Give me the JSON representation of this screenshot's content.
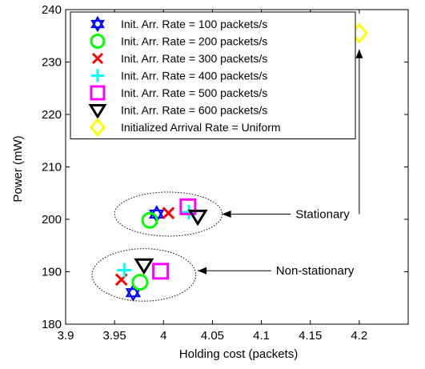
{
  "chart_data": {
    "type": "scatter",
    "title": "",
    "xlabel": "Holding cost (packets)",
    "ylabel": "Power (mW)",
    "xlim": [
      3.9,
      4.25
    ],
    "ylim": [
      180,
      240
    ],
    "xticks": [
      3.9,
      3.95,
      4,
      4.05,
      4.1,
      4.15,
      4.2
    ],
    "xtick_labels": [
      "3.9",
      "3.95",
      "4",
      "4.05",
      "4.1",
      "4.15",
      "4.2"
    ],
    "yticks": [
      180,
      190,
      200,
      210,
      220,
      230,
      240
    ],
    "ytick_labels": [
      "180",
      "190",
      "200",
      "210",
      "220",
      "230",
      "240"
    ],
    "legend_position": "top-left",
    "series": [
      {
        "name": "Init. Arr. Rate = 100 packets/s",
        "marker": "hexagram",
        "color": "#0000ff",
        "points": [
          {
            "x": 3.993,
            "y": 201.0
          },
          {
            "x": 3.969,
            "y": 186.0
          }
        ]
      },
      {
        "name": "Init. Arr. Rate = 200 packets/s",
        "marker": "circle",
        "color": "#00ff00",
        "points": [
          {
            "x": 3.986,
            "y": 199.8
          },
          {
            "x": 3.976,
            "y": 188.0
          }
        ]
      },
      {
        "name": "Init. Arr. Rate = 300 packets/s",
        "marker": "x",
        "color": "#ff0000",
        "points": [
          {
            "x": 4.005,
            "y": 201.2
          },
          {
            "x": 3.957,
            "y": 188.5
          }
        ]
      },
      {
        "name": "Init. Arr. Rate = 400 packets/s",
        "marker": "plus",
        "color": "#00ffff",
        "points": [
          {
            "x": 4.026,
            "y": 201.4
          },
          {
            "x": 3.96,
            "y": 190.3
          }
        ]
      },
      {
        "name": "Init. Arr. Rate = 500 packets/s",
        "marker": "square",
        "color": "#ff00ff",
        "points": [
          {
            "x": 4.025,
            "y": 202.4
          },
          {
            "x": 3.997,
            "y": 190.1
          }
        ]
      },
      {
        "name": "Init. Arr. Rate = 600 packets/s",
        "marker": "triangle-down",
        "color": "#000000",
        "points": [
          {
            "x": 4.035,
            "y": 200.6
          },
          {
            "x": 3.98,
            "y": 191.3
          }
        ]
      },
      {
        "name": "Initialized Arrival Rate = Uniform",
        "marker": "diamond",
        "color": "#ffff00",
        "points": [
          {
            "x": 4.2,
            "y": 235.5
          }
        ]
      }
    ],
    "annotations": [
      {
        "text": "Stationary",
        "ellipse": {
          "cx": 4.005,
          "cy": 201.0,
          "rx": 0.055,
          "ry": 4.2
        },
        "arrow_from": {
          "x": 4.13,
          "y": 201.0
        },
        "arrow_to": {
          "x": 4.06,
          "y": 201.0
        }
      },
      {
        "text": "Non-stationary",
        "ellipse": {
          "cx": 3.98,
          "cy": 189.4,
          "rx": 0.053,
          "ry": 5.0
        },
        "arrow_from": {
          "x": 4.11,
          "y": 190.2
        },
        "arrow_to": {
          "x": 4.035,
          "y": 190.2
        }
      },
      {
        "text": "",
        "arrow_from": {
          "x": 4.2,
          "y": 201.0
        },
        "arrow_to": {
          "x": 4.2,
          "y": 232.4
        }
      }
    ]
  }
}
